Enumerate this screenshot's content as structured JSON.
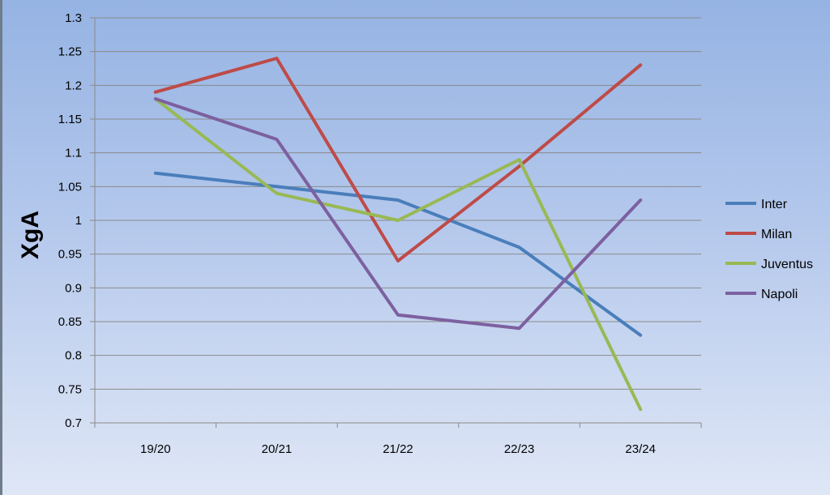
{
  "chart_data": {
    "type": "line",
    "title": "",
    "xlabel": "",
    "ylabel": "XgA",
    "categories": [
      "19/20",
      "20/21",
      "21/22",
      "22/23",
      "23/24"
    ],
    "ylim": [
      0.7,
      1.3
    ],
    "yticks": [
      "0.7",
      "0.75",
      "0.8",
      "0.85",
      "0.9",
      "0.95",
      "1",
      "1.05",
      "1.1",
      "1.15",
      "1.2",
      "1.25",
      "1.3"
    ],
    "grid": true,
    "legend_position": "right",
    "series": [
      {
        "name": "Inter",
        "color": "#4a7ebb",
        "values": [
          1.07,
          1.05,
          1.03,
          0.96,
          0.83
        ]
      },
      {
        "name": "Milan",
        "color": "#be4b48",
        "values": [
          1.19,
          1.24,
          0.94,
          1.08,
          1.23
        ]
      },
      {
        "name": "Juventus",
        "color": "#98b954",
        "values": [
          1.18,
          1.04,
          1.0,
          1.09,
          0.72
        ]
      },
      {
        "name": "Napoli",
        "color": "#7d60a0",
        "values": [
          1.18,
          1.12,
          0.86,
          0.84,
          1.03
        ]
      }
    ]
  }
}
